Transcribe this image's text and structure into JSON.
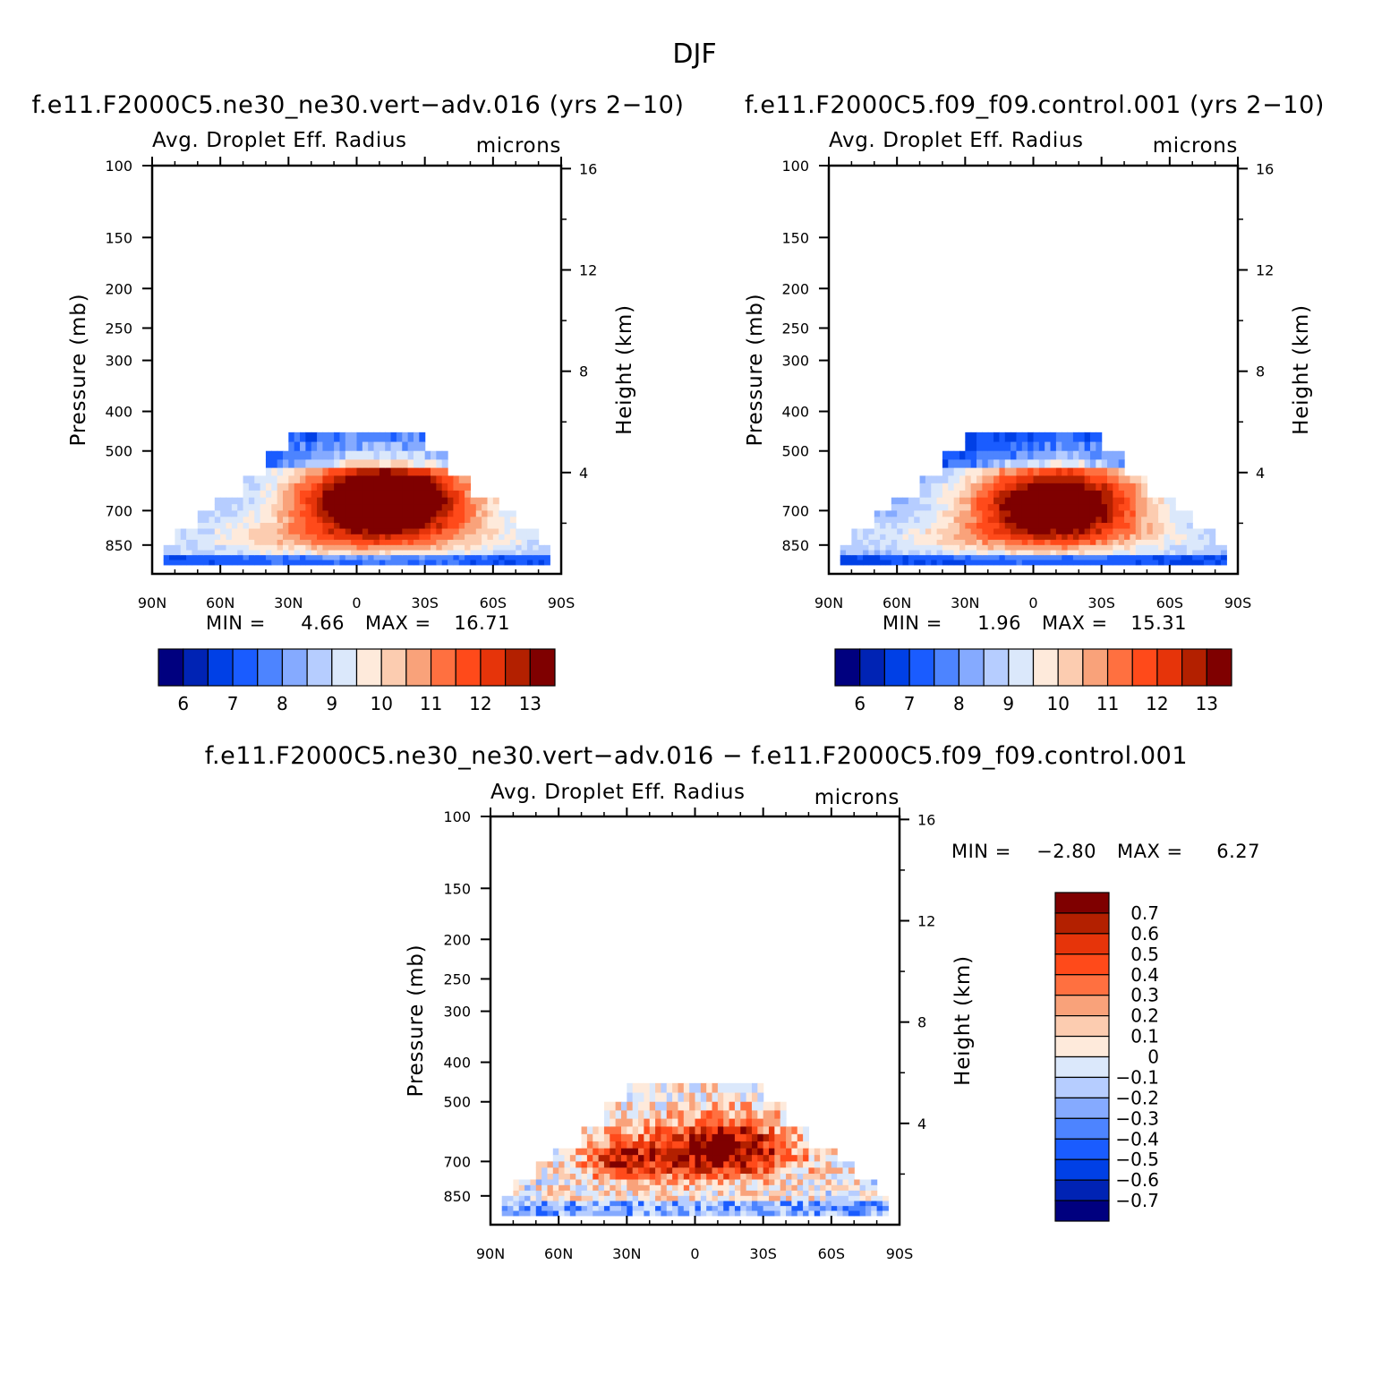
{
  "figure_title": "DJF",
  "colors": {
    "colormap": [
      "#00007f",
      "#0023b4",
      "#0040e6",
      "#1a5cff",
      "#4d84ff",
      "#85aaff",
      "#b6cdff",
      "#dbe8fb",
      "#feeadb",
      "#fcccb0",
      "#f9a27a",
      "#ff7040",
      "#ff4a1a",
      "#e6340a",
      "#b32000",
      "#7f0000"
    ]
  },
  "chart_data": [
    {
      "type": "heatmap",
      "id": "panel-test",
      "title": "f.e11.F2000C5.ne30_ne30.vert-adv.016 (yrs 2-10)",
      "subtitle_left": "Avg. Droplet Eff. Radius",
      "subtitle_right": "microns",
      "ylabel": "Pressure (mb)",
      "ylabel_right": "Height (km)",
      "xticks": [
        "90N",
        "60N",
        "30N",
        "0",
        "30S",
        "60S",
        "90S"
      ],
      "yticks": [
        100,
        150,
        200,
        250,
        300,
        400,
        500,
        700,
        850
      ],
      "yticks_right": [
        16,
        12,
        8,
        4
      ],
      "ylim": [
        100,
        1000
      ],
      "min_label": "MIN =",
      "min": "4.66",
      "max_label": "MAX =",
      "max": "16.71",
      "colorbar_labels": [
        "6",
        "7",
        "8",
        "9",
        "10",
        "11",
        "12",
        "13"
      ],
      "field": {
        "center_lat": -12,
        "center_p": 660,
        "peak": 15.5,
        "base": 8.2,
        "top_lo_p": 450,
        "top_hi_p": 480,
        "lat_extent": [
          -85,
          85
        ]
      }
    },
    {
      "type": "heatmap",
      "id": "panel-control",
      "title": "f.e11.F2000C5.f09_f09.control.001 (yrs 2-10)",
      "subtitle_left": "Avg. Droplet Eff. Radius",
      "subtitle_right": "microns",
      "ylabel": "Pressure (mb)",
      "ylabel_right": "Height (km)",
      "xticks": [
        "90N",
        "60N",
        "30N",
        "0",
        "30S",
        "60S",
        "90S"
      ],
      "yticks": [
        100,
        150,
        200,
        250,
        300,
        400,
        500,
        700,
        850
      ],
      "yticks_right": [
        16,
        12,
        8,
        4
      ],
      "ylim": [
        100,
        1000
      ],
      "min_label": "MIN =",
      "min": "1.96",
      "max_label": "MAX =",
      "max": "15.31",
      "colorbar_labels": [
        "6",
        "7",
        "8",
        "9",
        "10",
        "11",
        "12",
        "13"
      ],
      "field": {
        "center_lat": -10,
        "center_p": 670,
        "peak": 14.6,
        "base": 8.0,
        "top_lo_p": 450,
        "top_hi_p": 480,
        "lat_extent": [
          -85,
          85
        ]
      }
    },
    {
      "type": "heatmap",
      "id": "panel-diff",
      "title": "f.e11.F2000C5.ne30_ne30.vert-adv.016 - f.e11.F2000C5.f09_f09.control.001",
      "subtitle_left": "Avg. Droplet Eff. Radius",
      "subtitle_right": "microns",
      "ylabel": "Pressure (mb)",
      "ylabel_right": "Height (km)",
      "xticks": [
        "90N",
        "60N",
        "30N",
        "0",
        "30S",
        "60S",
        "90S"
      ],
      "yticks": [
        100,
        150,
        200,
        250,
        300,
        400,
        500,
        700,
        850
      ],
      "yticks_right": [
        16,
        12,
        8,
        4
      ],
      "ylim": [
        100,
        1000
      ],
      "min_label": "MIN =",
      "min": "-2.80",
      "max_label": "MAX =",
      "max": "6.27",
      "colorbar_labels": [
        "0.7",
        "0.6",
        "0.5",
        "0.4",
        "0.3",
        "0.2",
        "0.1",
        "0",
        "-0.1",
        "-0.2",
        "-0.3",
        "-0.4",
        "-0.5",
        "-0.6",
        "-0.7"
      ],
      "field": {
        "lat_extent": [
          -85,
          85
        ]
      }
    }
  ]
}
